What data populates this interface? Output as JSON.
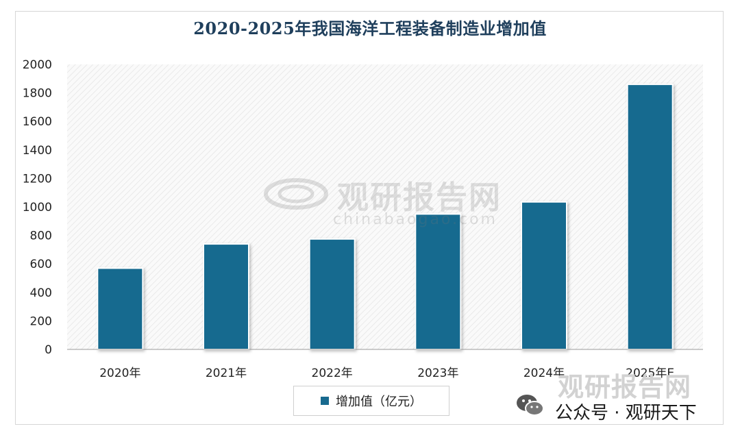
{
  "chart_data": {
    "type": "bar",
    "title": "2020-2025年我国海洋工程装备制造业增加值",
    "categories": [
      "2020年",
      "2021年",
      "2022年",
      "2023年",
      "2024年",
      "2025年E"
    ],
    "series": [
      {
        "name": "增加值（亿元）",
        "values": [
          570,
          740,
          775,
          950,
          1035,
          1860
        ]
      }
    ],
    "ylim": [
      0,
      2000
    ],
    "yticks": [
      0,
      200,
      400,
      600,
      800,
      1000,
      1200,
      1400,
      1600,
      1800,
      2000
    ],
    "grid": false,
    "legend": "bottom-center",
    "bar_color": "#186a8f"
  },
  "watermark": {
    "name": "观研报告网",
    "url": "chinabaogao.com"
  },
  "footer": {
    "brand": "观研报告网",
    "account": "公众号 · 观研天下"
  }
}
